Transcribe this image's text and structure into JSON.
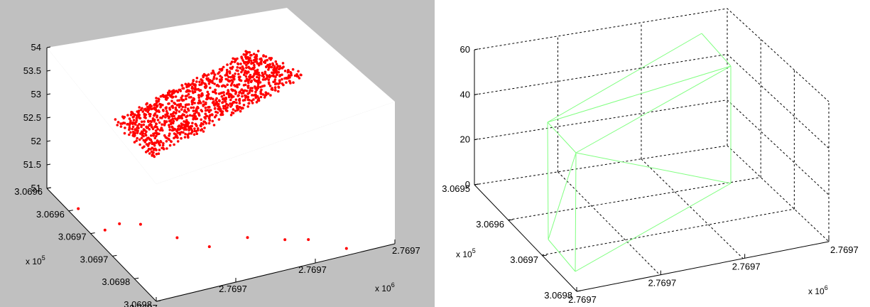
{
  "chart_data": [
    {
      "type": "scatter",
      "projection": "3d",
      "title": "",
      "xlabel": "",
      "ylabel": "",
      "zlabel": "",
      "x_ticks": [
        "2.7697",
        "2.7697",
        "2.7697",
        "2.7697"
      ],
      "x_exponent": {
        "base": "x 10",
        "power": "6"
      },
      "y_ticks": [
        "3.0696",
        "3.0696",
        "3.0697",
        "3.0697",
        "3.0698",
        "3.0698"
      ],
      "y_exponent": {
        "base": "x 10",
        "power": "5"
      },
      "z_ticks": [
        "51",
        "51.5",
        "52",
        "52.5",
        "53",
        "53.5",
        "54"
      ],
      "zlim": [
        51,
        54
      ],
      "grid": false,
      "marker_color": "#ff0000",
      "series": [
        {
          "description": "dense point cloud",
          "z_range": [
            52.0,
            53.6
          ],
          "approx_points": 1200
        },
        {
          "description": "sparse points",
          "points": [
            {
              "x": 0.04,
              "y": 0.8,
              "z": 51.0
            },
            {
              "x": 0.06,
              "y": 0.6,
              "z": 51.0
            },
            {
              "x": 0.13,
              "y": 0.62,
              "z": 51.0
            },
            {
              "x": 0.2,
              "y": 0.58,
              "z": 51.0
            },
            {
              "x": 0.28,
              "y": 0.42,
              "z": 51.0
            },
            {
              "x": 0.36,
              "y": 0.3,
              "z": 51.0
            },
            {
              "x": 0.52,
              "y": 0.3,
              "z": 51.0
            },
            {
              "x": 0.64,
              "y": 0.22,
              "z": 51.0
            },
            {
              "x": 0.72,
              "y": 0.18,
              "z": 51.0
            },
            {
              "x": 0.82,
              "y": 0.05,
              "z": 51.0
            }
          ]
        }
      ]
    },
    {
      "type": "mesh",
      "projection": "3d",
      "title": "",
      "xlabel": "",
      "ylabel": "",
      "zlabel": "",
      "x_ticks": [
        "2.7697",
        "2.7697",
        "2.7697",
        "2.7697"
      ],
      "x_exponent": {
        "base": "x 10",
        "power": "6"
      },
      "y_ticks": [
        "3.0695",
        "3.0696",
        "3.0697",
        "3.0698"
      ],
      "y_exponent": {
        "base": "x 10",
        "power": "5"
      },
      "z_ticks": [
        "0",
        "20",
        "40",
        "60"
      ],
      "zlim": [
        0,
        60
      ],
      "grid": true,
      "edge_color": "#80ff80"
    }
  ]
}
